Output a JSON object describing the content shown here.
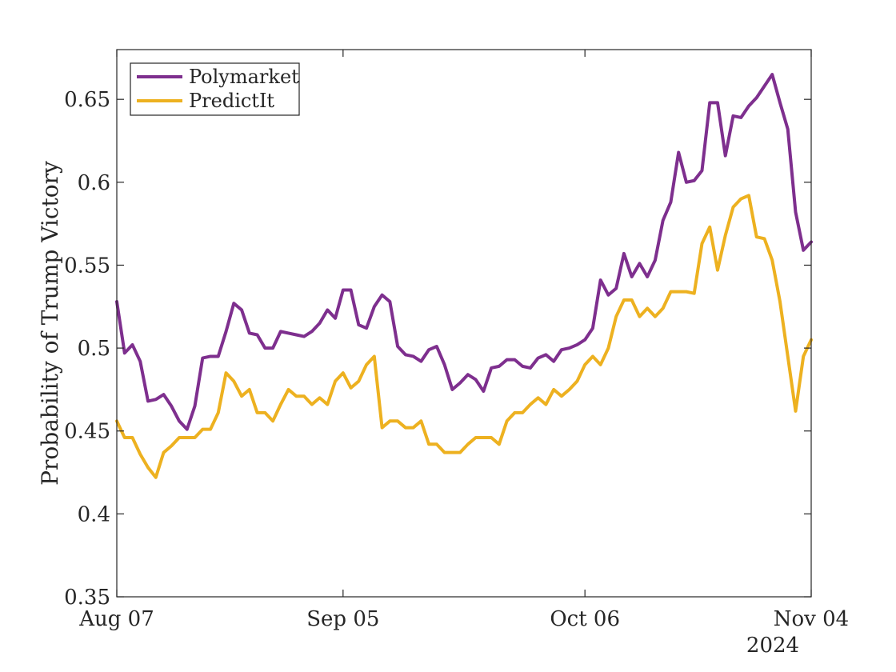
{
  "chart_data": {
    "type": "line",
    "ylabel": "Probability of Trump Victory",
    "xlabel": "",
    "x_tick_labels": [
      "Aug 07",
      "Sep 05",
      "Oct 06",
      "Nov 04"
    ],
    "x_year_label": "2024",
    "ylim": [
      0.35,
      0.68
    ],
    "y_ticks": [
      0.35,
      0.4,
      0.45,
      0.5,
      0.55,
      0.6,
      0.65
    ],
    "y_tick_labels": [
      "0.35",
      "0.4",
      "0.45",
      "0.5",
      "0.55",
      "0.6",
      "0.65"
    ],
    "grid": false,
    "legend_position": "top-left",
    "x_start_date": "2024-08-07",
    "x_end_date": "2024-11-04",
    "x_tick_dates": [
      "2024-08-07",
      "2024-09-05",
      "2024-10-06",
      "2024-11-04"
    ],
    "series": [
      {
        "name": "Polymarket",
        "color": "#7E2F8E",
        "points": [
          [
            "2024-08-07",
            0.528
          ],
          [
            "2024-08-08",
            0.497
          ],
          [
            "2024-08-09",
            0.502
          ],
          [
            "2024-08-10",
            0.492
          ],
          [
            "2024-08-11",
            0.468
          ],
          [
            "2024-08-12",
            0.469
          ],
          [
            "2024-08-13",
            0.472
          ],
          [
            "2024-08-14",
            0.465
          ],
          [
            "2024-08-15",
            0.456
          ],
          [
            "2024-08-16",
            0.451
          ],
          [
            "2024-08-17",
            0.465
          ],
          [
            "2024-08-18",
            0.494
          ],
          [
            "2024-08-19",
            0.495
          ],
          [
            "2024-08-20",
            0.495
          ],
          [
            "2024-08-21",
            0.51
          ],
          [
            "2024-08-22",
            0.527
          ],
          [
            "2024-08-23",
            0.523
          ],
          [
            "2024-08-24",
            0.509
          ],
          [
            "2024-08-25",
            0.508
          ],
          [
            "2024-08-26",
            0.5
          ],
          [
            "2024-08-27",
            0.5
          ],
          [
            "2024-08-28",
            0.51
          ],
          [
            "2024-08-29",
            0.509
          ],
          [
            "2024-08-30",
            0.508
          ],
          [
            "2024-08-31",
            0.507
          ],
          [
            "2024-09-01",
            0.51
          ],
          [
            "2024-09-02",
            0.515
          ],
          [
            "2024-09-03",
            0.523
          ],
          [
            "2024-09-04",
            0.518
          ],
          [
            "2024-09-05",
            0.535
          ],
          [
            "2024-09-06",
            0.535
          ],
          [
            "2024-09-07",
            0.514
          ],
          [
            "2024-09-08",
            0.512
          ],
          [
            "2024-09-09",
            0.525
          ],
          [
            "2024-09-10",
            0.532
          ],
          [
            "2024-09-11",
            0.528
          ],
          [
            "2024-09-12",
            0.501
          ],
          [
            "2024-09-13",
            0.496
          ],
          [
            "2024-09-14",
            0.495
          ],
          [
            "2024-09-15",
            0.492
          ],
          [
            "2024-09-16",
            0.499
          ],
          [
            "2024-09-17",
            0.501
          ],
          [
            "2024-09-18",
            0.49
          ],
          [
            "2024-09-19",
            0.475
          ],
          [
            "2024-09-20",
            0.479
          ],
          [
            "2024-09-21",
            0.484
          ],
          [
            "2024-09-22",
            0.481
          ],
          [
            "2024-09-23",
            0.474
          ],
          [
            "2024-09-24",
            0.488
          ],
          [
            "2024-09-25",
            0.489
          ],
          [
            "2024-09-26",
            0.493
          ],
          [
            "2024-09-27",
            0.493
          ],
          [
            "2024-09-28",
            0.489
          ],
          [
            "2024-09-29",
            0.488
          ],
          [
            "2024-09-30",
            0.494
          ],
          [
            "2024-10-01",
            0.496
          ],
          [
            "2024-10-02",
            0.492
          ],
          [
            "2024-10-03",
            0.499
          ],
          [
            "2024-10-04",
            0.5
          ],
          [
            "2024-10-05",
            0.502
          ],
          [
            "2024-10-06",
            0.505
          ],
          [
            "2024-10-07",
            0.512
          ],
          [
            "2024-10-08",
            0.541
          ],
          [
            "2024-10-09",
            0.532
          ],
          [
            "2024-10-10",
            0.536
          ],
          [
            "2024-10-11",
            0.557
          ],
          [
            "2024-10-12",
            0.543
          ],
          [
            "2024-10-13",
            0.551
          ],
          [
            "2024-10-14",
            0.543
          ],
          [
            "2024-10-15",
            0.553
          ],
          [
            "2024-10-16",
            0.577
          ],
          [
            "2024-10-17",
            0.588
          ],
          [
            "2024-10-18",
            0.618
          ],
          [
            "2024-10-19",
            0.6
          ],
          [
            "2024-10-20",
            0.601
          ],
          [
            "2024-10-21",
            0.607
          ],
          [
            "2024-10-22",
            0.648
          ],
          [
            "2024-10-23",
            0.648
          ],
          [
            "2024-10-24",
            0.616
          ],
          [
            "2024-10-25",
            0.64
          ],
          [
            "2024-10-26",
            0.639
          ],
          [
            "2024-10-27",
            0.646
          ],
          [
            "2024-10-28",
            0.651
          ],
          [
            "2024-10-29",
            0.658
          ],
          [
            "2024-10-30",
            0.665
          ],
          [
            "2024-10-31",
            0.648
          ],
          [
            "2024-11-01",
            0.632
          ],
          [
            "2024-11-02",
            0.582
          ],
          [
            "2024-11-03",
            0.559
          ],
          [
            "2024-11-04",
            0.564
          ]
        ]
      },
      {
        "name": "PredictIt",
        "color": "#EDB120",
        "points": [
          [
            "2024-08-07",
            0.456
          ],
          [
            "2024-08-08",
            0.446
          ],
          [
            "2024-08-09",
            0.446
          ],
          [
            "2024-08-10",
            0.436
          ],
          [
            "2024-08-11",
            0.428
          ],
          [
            "2024-08-12",
            0.422
          ],
          [
            "2024-08-13",
            0.437
          ],
          [
            "2024-08-14",
            0.441
          ],
          [
            "2024-08-15",
            0.446
          ],
          [
            "2024-08-16",
            0.446
          ],
          [
            "2024-08-17",
            0.446
          ],
          [
            "2024-08-18",
            0.451
          ],
          [
            "2024-08-19",
            0.451
          ],
          [
            "2024-08-20",
            0.461
          ],
          [
            "2024-08-21",
            0.485
          ],
          [
            "2024-08-22",
            0.48
          ],
          [
            "2024-08-23",
            0.471
          ],
          [
            "2024-08-24",
            0.475
          ],
          [
            "2024-08-25",
            0.461
          ],
          [
            "2024-08-26",
            0.461
          ],
          [
            "2024-08-27",
            0.456
          ],
          [
            "2024-08-28",
            0.466
          ],
          [
            "2024-08-29",
            0.475
          ],
          [
            "2024-08-30",
            0.471
          ],
          [
            "2024-08-31",
            0.471
          ],
          [
            "2024-09-01",
            0.466
          ],
          [
            "2024-09-02",
            0.47
          ],
          [
            "2024-09-03",
            0.466
          ],
          [
            "2024-09-04",
            0.48
          ],
          [
            "2024-09-05",
            0.485
          ],
          [
            "2024-09-06",
            0.476
          ],
          [
            "2024-09-07",
            0.48
          ],
          [
            "2024-09-08",
            0.49
          ],
          [
            "2024-09-09",
            0.495
          ],
          [
            "2024-09-10",
            0.452
          ],
          [
            "2024-09-11",
            0.456
          ],
          [
            "2024-09-12",
            0.456
          ],
          [
            "2024-09-13",
            0.452
          ],
          [
            "2024-09-14",
            0.452
          ],
          [
            "2024-09-15",
            0.456
          ],
          [
            "2024-09-16",
            0.442
          ],
          [
            "2024-09-17",
            0.442
          ],
          [
            "2024-09-18",
            0.437
          ],
          [
            "2024-09-19",
            0.437
          ],
          [
            "2024-09-20",
            0.437
          ],
          [
            "2024-09-21",
            0.442
          ],
          [
            "2024-09-22",
            0.446
          ],
          [
            "2024-09-23",
            0.446
          ],
          [
            "2024-09-24",
            0.446
          ],
          [
            "2024-09-25",
            0.442
          ],
          [
            "2024-09-26",
            0.456
          ],
          [
            "2024-09-27",
            0.461
          ],
          [
            "2024-09-28",
            0.461
          ],
          [
            "2024-09-29",
            0.466
          ],
          [
            "2024-09-30",
            0.47
          ],
          [
            "2024-10-01",
            0.466
          ],
          [
            "2024-10-02",
            0.475
          ],
          [
            "2024-10-03",
            0.471
          ],
          [
            "2024-10-04",
            0.475
          ],
          [
            "2024-10-05",
            0.48
          ],
          [
            "2024-10-06",
            0.49
          ],
          [
            "2024-10-07",
            0.495
          ],
          [
            "2024-10-08",
            0.49
          ],
          [
            "2024-10-09",
            0.5
          ],
          [
            "2024-10-10",
            0.519
          ],
          [
            "2024-10-11",
            0.529
          ],
          [
            "2024-10-12",
            0.529
          ],
          [
            "2024-10-13",
            0.519
          ],
          [
            "2024-10-14",
            0.524
          ],
          [
            "2024-10-15",
            0.519
          ],
          [
            "2024-10-16",
            0.524
          ],
          [
            "2024-10-17",
            0.534
          ],
          [
            "2024-10-18",
            0.534
          ],
          [
            "2024-10-19",
            0.534
          ],
          [
            "2024-10-20",
            0.533
          ],
          [
            "2024-10-21",
            0.563
          ],
          [
            "2024-10-22",
            0.573
          ],
          [
            "2024-10-23",
            0.547
          ],
          [
            "2024-10-24",
            0.568
          ],
          [
            "2024-10-25",
            0.585
          ],
          [
            "2024-10-26",
            0.59
          ],
          [
            "2024-10-27",
            0.592
          ],
          [
            "2024-10-28",
            0.567
          ],
          [
            "2024-10-29",
            0.566
          ],
          [
            "2024-10-30",
            0.553
          ],
          [
            "2024-10-31",
            0.528
          ],
          [
            "2024-11-01",
            0.495
          ],
          [
            "2024-11-02",
            0.462
          ],
          [
            "2024-11-03",
            0.495
          ],
          [
            "2024-11-04",
            0.505
          ]
        ]
      }
    ]
  }
}
